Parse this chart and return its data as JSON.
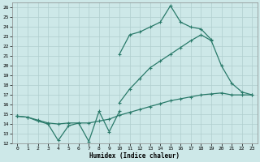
{
  "xlabel": "Humidex (Indice chaleur)",
  "x_values": [
    0,
    1,
    2,
    3,
    4,
    5,
    6,
    7,
    8,
    9,
    10,
    11,
    12,
    13,
    14,
    15,
    16,
    17,
    18,
    19,
    20,
    21,
    22,
    23
  ],
  "line_wavy_y": [
    14.8,
    14.7,
    14.3,
    14.0,
    12.3,
    13.8,
    14.1,
    12.2,
    15.3,
    13.2,
    15.3,
    null,
    null,
    null,
    null,
    null,
    null,
    null,
    null,
    null,
    null,
    null,
    null,
    null
  ],
  "line_bottom_y": [
    14.8,
    14.7,
    14.4,
    14.1,
    14.0,
    14.1,
    14.1,
    14.1,
    14.3,
    14.5,
    14.9,
    15.2,
    15.5,
    15.8,
    16.1,
    16.4,
    16.6,
    16.8,
    17.0,
    17.1,
    17.2,
    17.0,
    17.0,
    17.0
  ],
  "line_mid_y": [
    14.8,
    null,
    null,
    null,
    null,
    null,
    null,
    null,
    null,
    null,
    16.2,
    17.6,
    18.7,
    19.8,
    20.5,
    21.2,
    21.9,
    22.6,
    23.2,
    22.6,
    20.0,
    18.2,
    17.3,
    17.0
  ],
  "line_top_y": [
    14.8,
    null,
    null,
    null,
    null,
    null,
    null,
    null,
    null,
    null,
    21.2,
    23.2,
    23.5,
    24.0,
    24.5,
    26.2,
    24.5,
    24.0,
    23.8,
    22.7,
    null,
    null,
    null,
    null
  ],
  "bg_color": "#cde8e8",
  "line_color": "#2a7a6a",
  "grid_color": "#b8d0d0",
  "xlim": [
    -0.5,
    23.5
  ],
  "ylim": [
    12,
    26.5
  ],
  "yticks": [
    12,
    13,
    14,
    15,
    16,
    17,
    18,
    19,
    20,
    21,
    22,
    23,
    24,
    25,
    26
  ],
  "xticks": [
    0,
    1,
    2,
    3,
    4,
    5,
    6,
    7,
    8,
    9,
    10,
    11,
    12,
    13,
    14,
    15,
    16,
    17,
    18,
    19,
    20,
    21,
    22,
    23
  ],
  "marker_size": 2.5,
  "line_width": 0.9
}
